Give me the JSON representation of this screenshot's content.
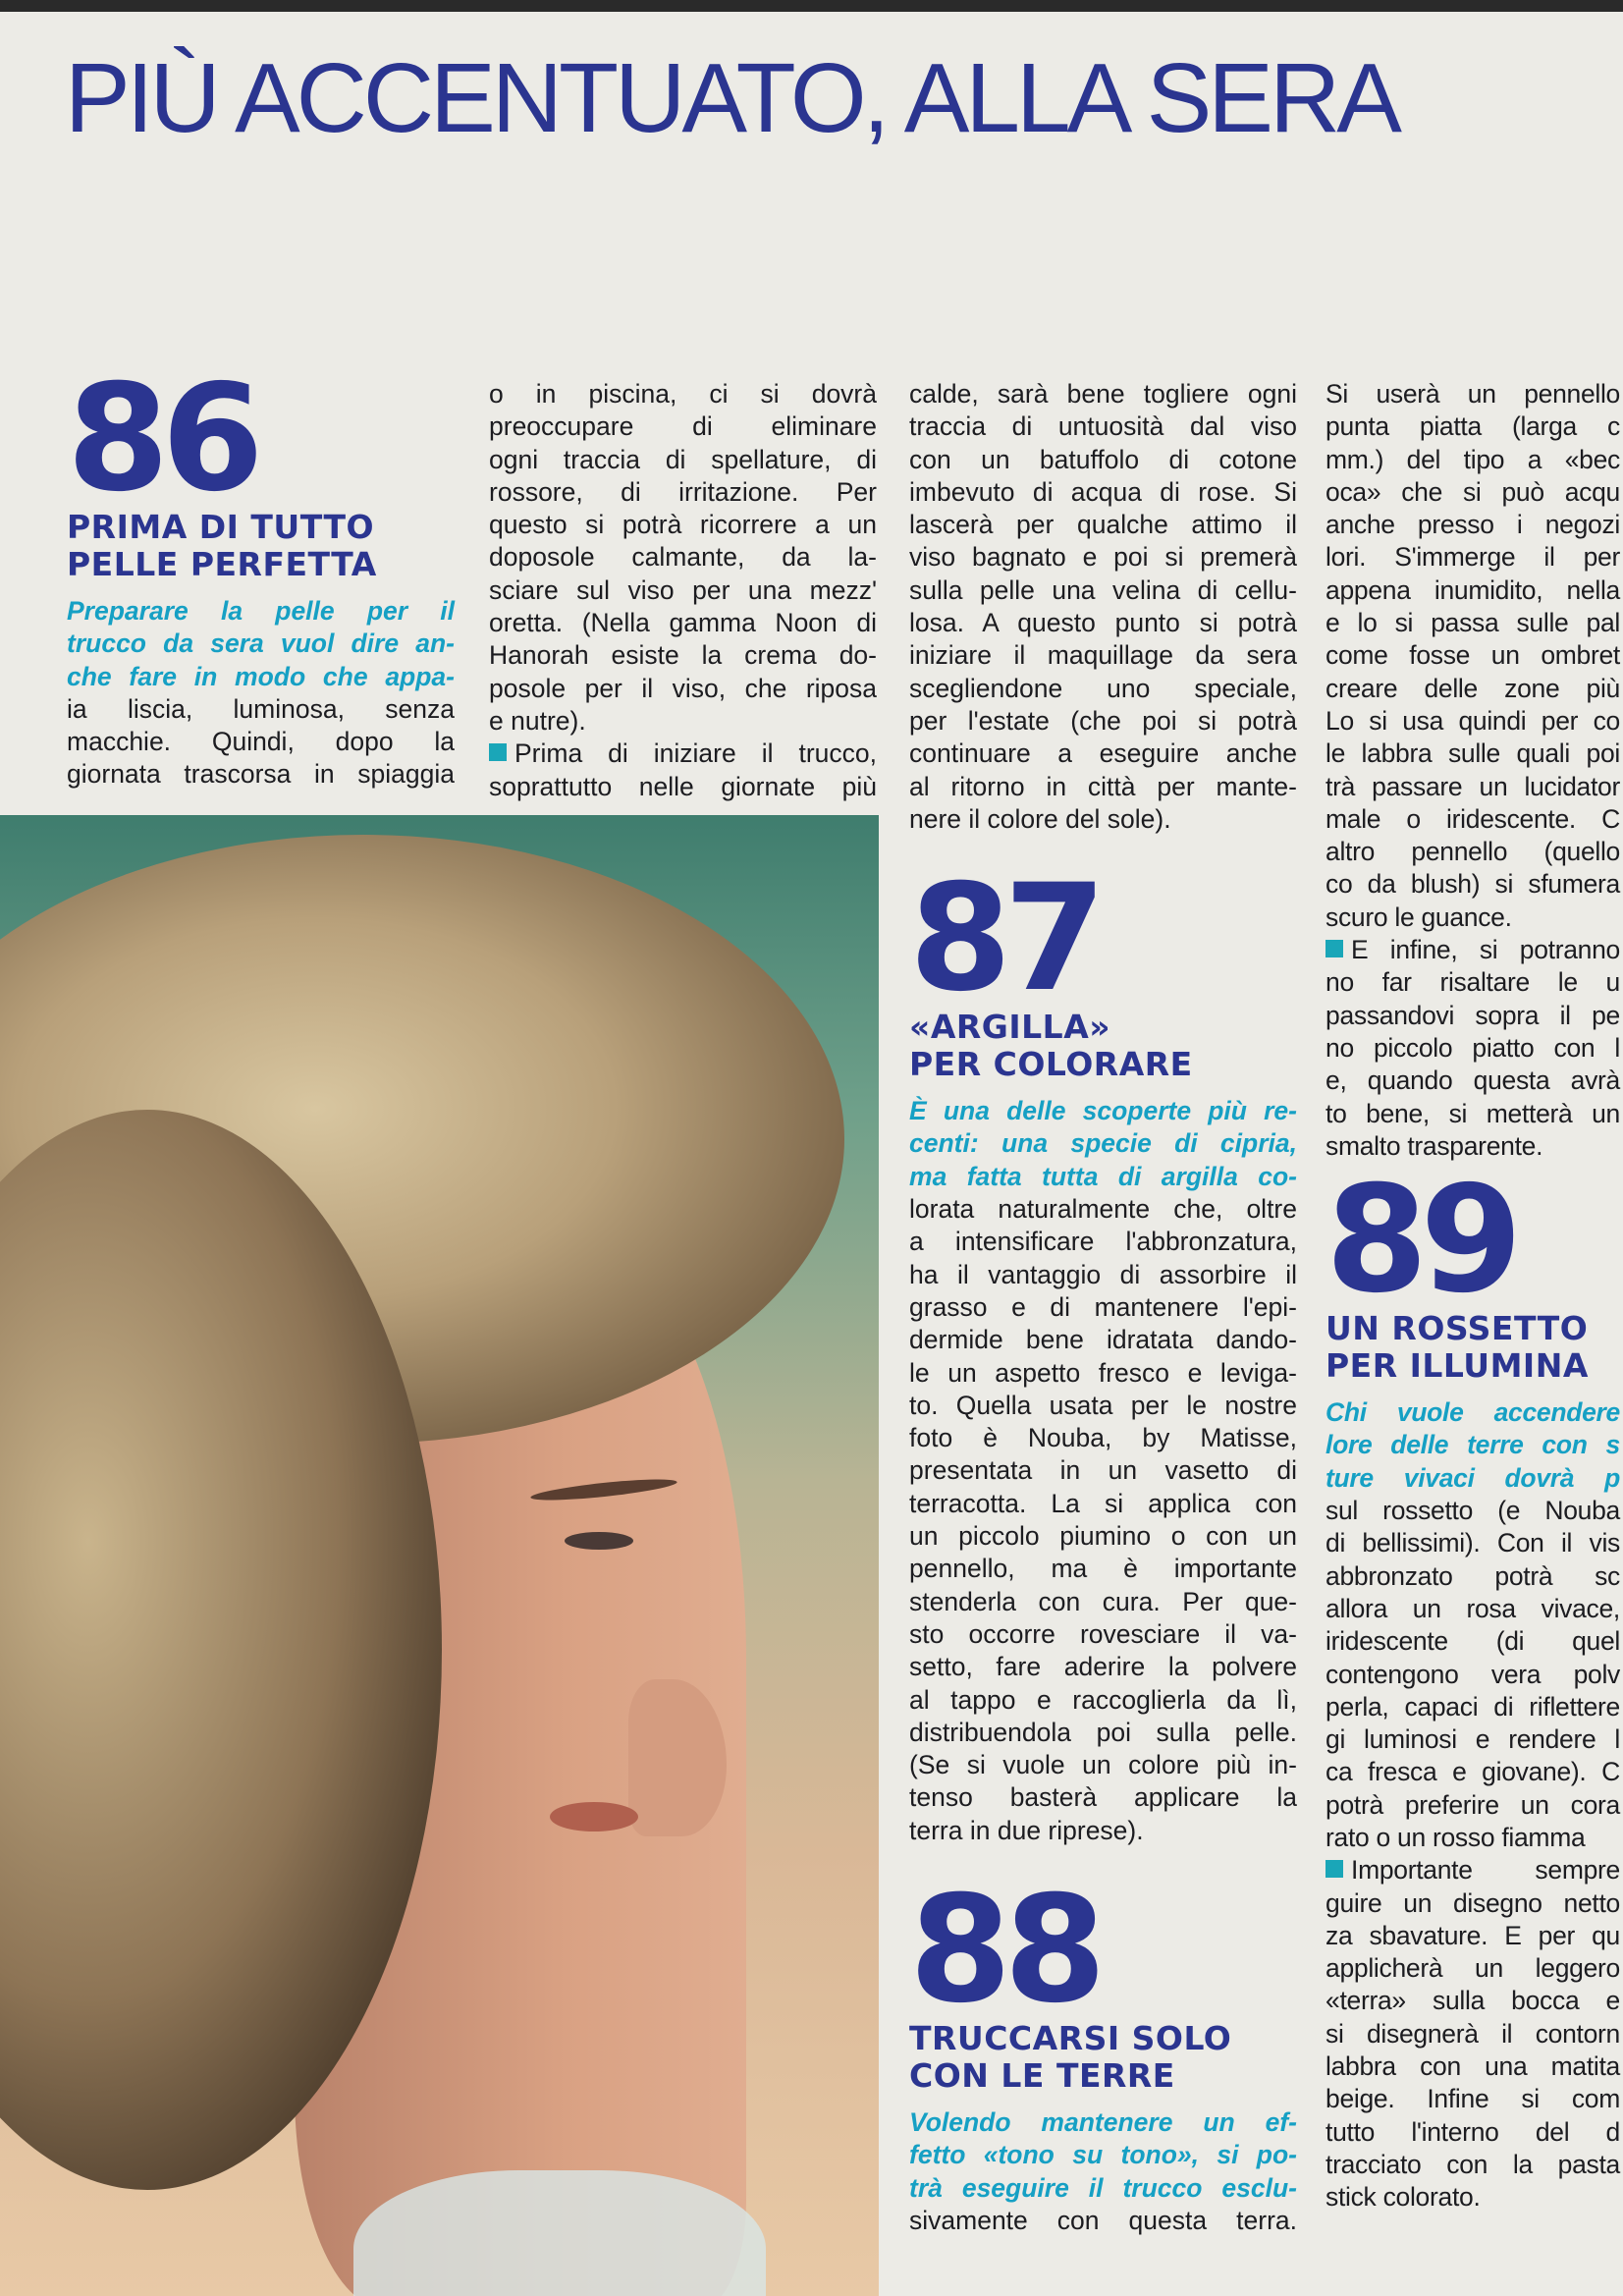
{
  "title": "PIÙ ACCENTUATO, ALLA SERA",
  "colors": {
    "title_blue": "#2b3590",
    "accent_teal": "#16a0c4",
    "bullet": "#1aa6b8"
  },
  "photo": {
    "subject": "woman-profile-blonde-curly-hair"
  },
  "sections": {
    "s86": {
      "number": "86",
      "heading": [
        "PRIMA DI TUTTO",
        "PELLE PERFETTA"
      ],
      "intro": [
        "Preparare la pelle per il",
        "trucco da sera vuol dire an-",
        "che fare in modo che appa-"
      ]
    },
    "s87": {
      "number": "87",
      "heading": [
        "«ARGILLA»",
        "PER COLORARE"
      ],
      "intro": [
        "È una delle scoperte più re-",
        "centi: una specie di cipria,",
        "ma fatta tutta di argilla co-"
      ]
    },
    "s88": {
      "number": "88",
      "heading": [
        "TRUCCARSI SOLO",
        "CON LE TERRE"
      ],
      "intro": [
        "Volendo mantenere un ef-",
        "fetto «tono su tono», si po-",
        "trà eseguire il trucco esclu-"
      ]
    },
    "s89": {
      "number": "89",
      "heading": [
        "UN ROSSETTO",
        "PER ILLUMINA"
      ],
      "intro": [
        "Chi vuole accendere",
        "lore delle terre con s",
        "ture vivaci dovrà p"
      ]
    }
  },
  "columns": {
    "c1": [
      {
        "lines": [
          "ia liscia, luminosa, senza",
          "macchie. Quindi, dopo la",
          "giornata trascorsa in spiaggia"
        ],
        "open": true
      }
    ],
    "c2": [
      {
        "lines": [
          "o in piscina, ci si dovrà",
          "preoccupare di eliminare",
          "ogni traccia di spellature, di",
          "rossore, di irritazione. Per",
          "questo si potrà ricorrere a un",
          "doposole calmante, da la-",
          "sciare sul viso per una mezz'",
          "oretta. (Nella gamma Noon di",
          "Hanorah esiste la crema do-",
          "posole per il viso, che riposa",
          "e nutre)."
        ]
      },
      {
        "bullet": true,
        "lines": [
          "Prima di iniziare il trucco,",
          "soprattutto nelle giornate più"
        ],
        "open": true
      }
    ],
    "c3a": [
      {
        "lines": [
          "calde, sarà bene togliere ogni",
          "traccia di untuosità dal viso",
          "con un batuffolo di cotone",
          "imbevuto di acqua di rose. Si",
          "lascerà per qualche attimo il",
          "viso bagnato e poi si premerà",
          "sulla pelle una velina di cellu-",
          "losa. A questo punto si potrà",
          "iniziare il maquillage da sera",
          "scegliendone uno speciale,",
          "per l'estate (che poi si potrà",
          "continuare a eseguire anche",
          "al ritorno in città per mante-",
          "nere il colore del sole)."
        ]
      }
    ],
    "c3b": [
      {
        "lines": [
          "lorata naturalmente che, oltre",
          "a intensificare l'abbronzatura,",
          "ha il vantaggio di assorbire il",
          "grasso e di mantenere l'epi-",
          "dermide bene idratata dando-",
          "le un aspetto fresco e leviga-",
          "to. Quella usata per le nostre",
          "foto è Nouba, by Matisse,",
          "presentata in un vasetto di",
          "terracotta. La si applica con",
          "un piccolo piumino o con un",
          "pennello, ma è importante",
          "stenderla con cura. Per que-",
          "sto occorre rovesciare il va-",
          "setto, fare aderire la polvere",
          "al tappo e raccoglierla da lì,",
          "distribuendola poi sulla pelle.",
          "(Se si vuole un colore più in-",
          "tenso basterà applicare la",
          "terra in due riprese)."
        ]
      }
    ],
    "c3c": [
      {
        "lines": [
          "sivamente con questa terra."
        ],
        "open": true
      }
    ],
    "c4a": [
      {
        "lines": [
          "Si userà un pennello",
          "punta piatta (larga c",
          "mm.) del tipo a «bec",
          "oca» che si può acqu",
          "anche presso i negozi",
          "lori. S'immerge il per",
          "appena inumidito, nella",
          "e lo si passa sulle pal",
          "come fosse un ombret",
          "creare delle zone più",
          "Lo si usa quindi per co",
          "le labbra sulle quali poi",
          "trà passare un lucidator",
          "male o iridescente. C",
          "altro pennello (quello",
          "co da blush) si sfumera",
          "scuro le guance."
        ]
      },
      {
        "bullet": true,
        "lines": [
          "E infine, si potranno",
          "no far risaltare le u",
          "passandovi sopra il pe",
          "no piccolo piatto con l",
          "e, quando questa avrà",
          "to bene, si metterà un",
          "smalto trasparente."
        ]
      }
    ],
    "c4b": [
      {
        "lines": [
          "sul rossetto (e Nouba",
          "di bellissimi). Con il vis",
          "abbronzato potrà sc",
          "allora un rosa vivace,",
          "iridescente (di quel",
          "contengono vera polv",
          "perla, capaci di riflettere",
          "gi luminosi e rendere l",
          "ca fresca e giovane). C",
          "potrà preferire un cora",
          "rato o un rosso fiamma"
        ]
      },
      {
        "bullet": true,
        "lines": [
          "Importante sempre",
          "guire un disegno netto",
          "za sbavature. E per qu",
          "applicherà un leggero",
          "«terra» sulla bocca e",
          "si disegnerà il contorn",
          "labbra con una matita",
          "beige. Infine si com",
          "tutto l'interno del d",
          "tracciato con la pasta",
          "stick colorato."
        ]
      }
    ]
  }
}
